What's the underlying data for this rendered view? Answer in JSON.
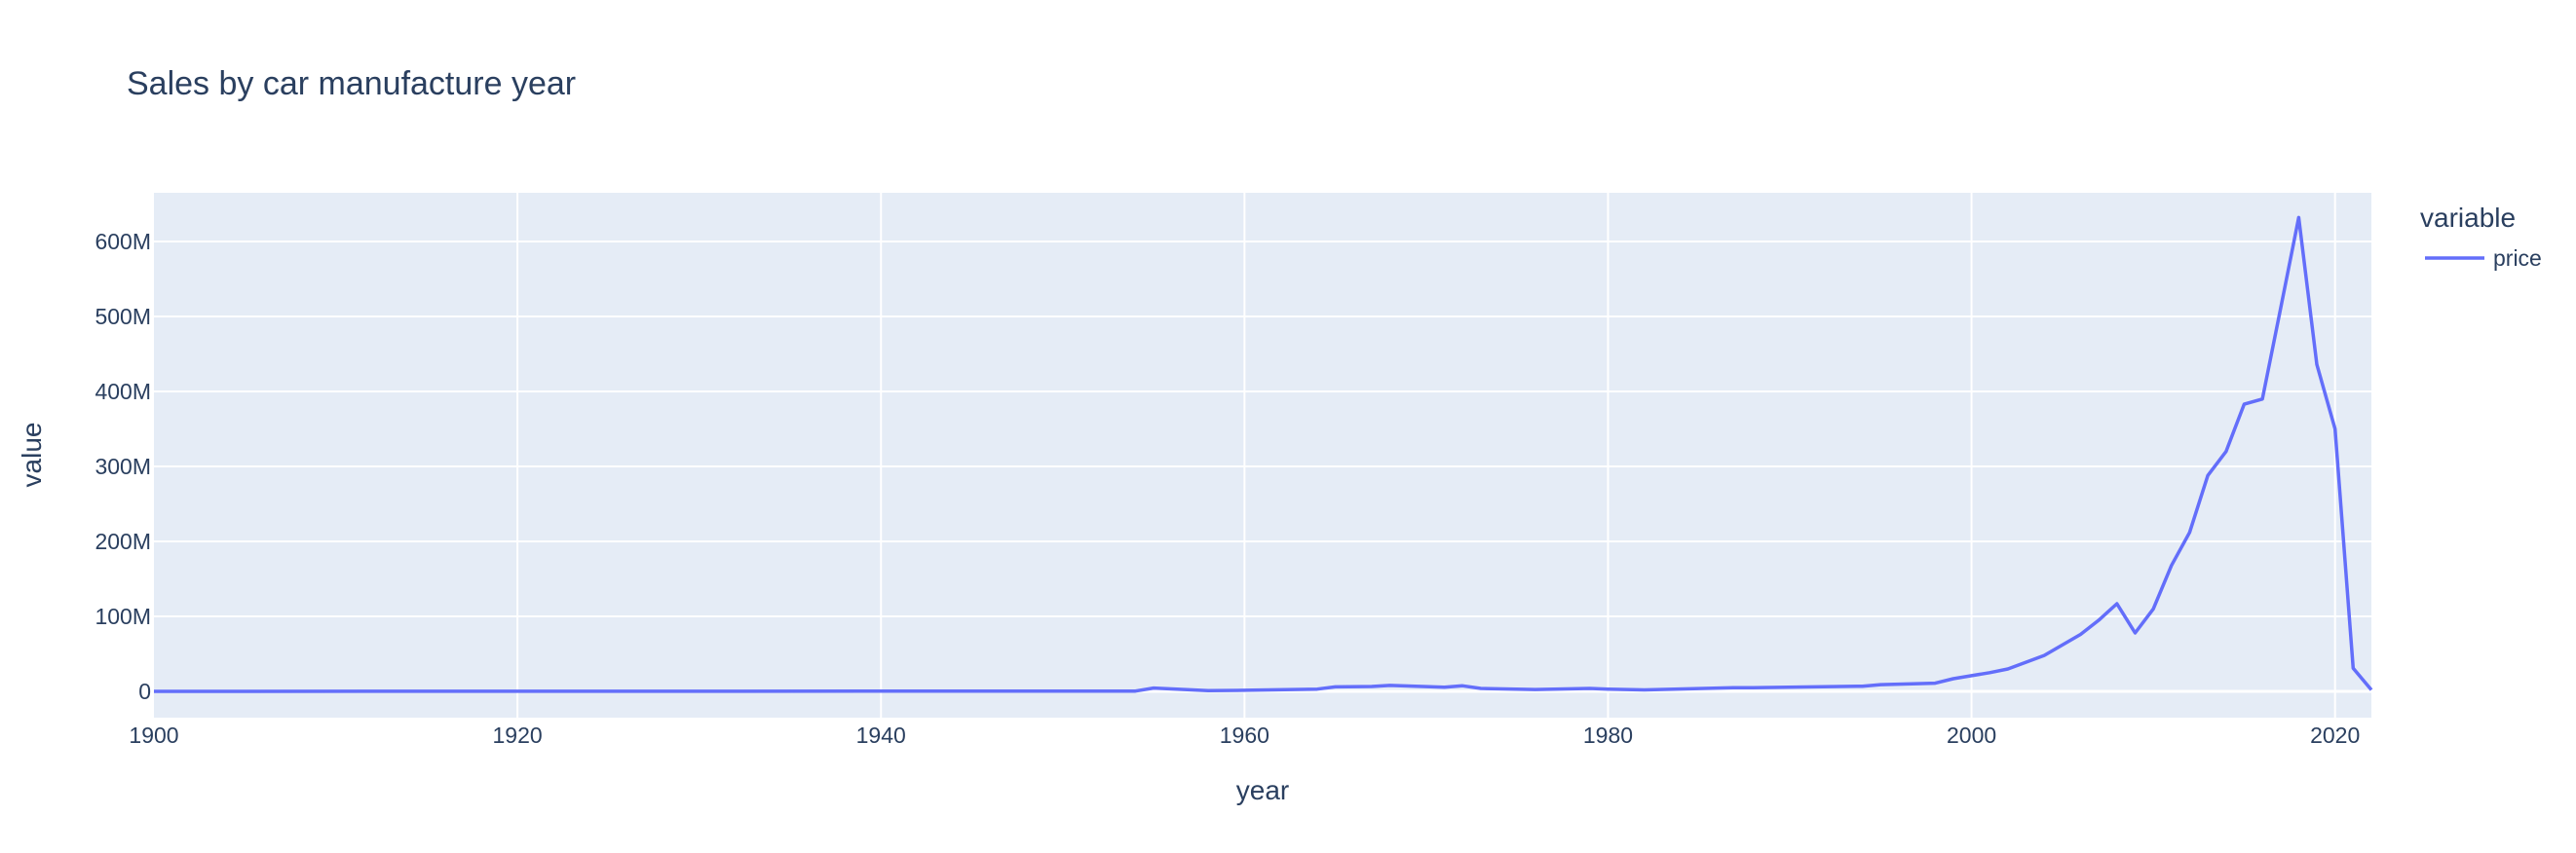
{
  "chart_data": {
    "type": "line",
    "title": "Sales by car manufacture year",
    "xlabel": "year",
    "ylabel": "value",
    "xlim": [
      1900,
      2022
    ],
    "ylim": [
      -35000000,
      665000000
    ],
    "x_ticks": [
      1900,
      1920,
      1940,
      1960,
      1980,
      2000,
      2020
    ],
    "x_tick_labels": [
      "1900",
      "1920",
      "1940",
      "1960",
      "1980",
      "2000",
      "2020"
    ],
    "y_ticks": [
      0,
      100000000,
      200000000,
      300000000,
      400000000,
      500000000,
      600000000
    ],
    "y_tick_labels": [
      "0",
      "100M",
      "200M",
      "300M",
      "400M",
      "500M",
      "600M"
    ],
    "grid": true,
    "legend_title": "variable",
    "legend_position": "right",
    "colors": {
      "plot_bg": "#e5ecf6",
      "grid": "#ffffff",
      "text": "#2a3f5f"
    },
    "series": [
      {
        "name": "price",
        "color": "#636efa",
        "x": [
          1900,
          1954,
          1955,
          1958,
          1960,
          1964,
          1965,
          1967,
          1968,
          1971,
          1972,
          1973,
          1976,
          1979,
          1980,
          1982,
          1987,
          1988,
          1994,
          1995,
          1998,
          1999,
          2000,
          2001,
          2002,
          2004,
          2006,
          2007,
          2008,
          2009,
          2010,
          2011,
          2012,
          2013,
          2014,
          2015,
          2016,
          2017,
          2018,
          2019,
          2020,
          2021,
          2022
        ],
        "y": [
          0,
          500000,
          4500000,
          1000000,
          1500000,
          3000000,
          6000000,
          6500000,
          8000000,
          5500000,
          7500000,
          4000000,
          2500000,
          4000000,
          3000000,
          2000000,
          5000000,
          5000000,
          7000000,
          9000000,
          11000000,
          17000000,
          21000000,
          25000000,
          30000000,
          48000000,
          76000000,
          95000000,
          117000000,
          78000000,
          110000000,
          168000000,
          212000000,
          288000000,
          320000000,
          383000000,
          390000000,
          510000000,
          632000000,
          436000000,
          350000000,
          31000000,
          2000000
        ]
      }
    ]
  }
}
